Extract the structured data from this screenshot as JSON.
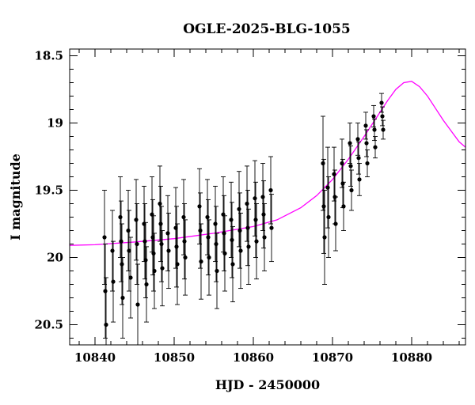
{
  "chart_data": {
    "type": "scatter",
    "title": "OGLE-2025-BLG-1055",
    "xlabel": "HJD - 2450000",
    "ylabel": "I magnitude",
    "xlim": [
      10836.8,
      10886.8
    ],
    "ylim": [
      20.65,
      18.45
    ],
    "y_inverted": true,
    "xticks": [
      10840,
      10850,
      10860,
      10870,
      10880
    ],
    "yticks": [
      18.5,
      19,
      19.5,
      20,
      20.5
    ],
    "xtick_labels": [
      "10840",
      "10850",
      "10860",
      "10870",
      "10880"
    ],
    "ytick_labels": [
      "18.5",
      "19",
      "19.5",
      "20",
      "20.5"
    ],
    "grid": false,
    "series": [
      {
        "kind": "points_with_errorbars",
        "color": "#000000",
        "x": [
          10841.2,
          10841.3,
          10841.4,
          10842.2,
          10842.3,
          10843.2,
          10843.3,
          10843.4,
          10843.5,
          10844.2,
          10844.3,
          10844.5,
          10845.2,
          10845.3,
          10845.4,
          10846.2,
          10846.3,
          10846.4,
          10846.5,
          10847.2,
          10847.3,
          10847.4,
          10847.5,
          10848.2,
          10848.3,
          10848.4,
          10848.5,
          10849.2,
          10849.3,
          10850.2,
          10850.3,
          10850.4,
          10851.2,
          10851.3,
          10851.4,
          10853.2,
          10853.3,
          10853.4,
          10854.2,
          10854.3,
          10854.4,
          10855.2,
          10855.3,
          10855.4,
          10856.2,
          10856.3,
          10856.4,
          10857.2,
          10857.3,
          10857.4,
          10858.2,
          10858.3,
          10858.4,
          10859.2,
          10859.3,
          10859.4,
          10860.2,
          10860.3,
          10860.4,
          10861.2,
          10861.3,
          10861.4,
          10862.2,
          10862.3,
          10868.8,
          10868.9,
          10869.0,
          10869.4,
          10869.5,
          10870.2,
          10870.3,
          10870.4,
          10871.2,
          10871.3,
          10871.4,
          10872.2,
          10872.3,
          10872.4,
          10873.2,
          10873.3,
          10873.4,
          10874.2,
          10874.3,
          10874.4,
          10875.2,
          10875.3,
          10875.4,
          10876.2,
          10876.3,
          10876.4
        ],
        "y": [
          19.85,
          20.25,
          20.5,
          19.95,
          20.18,
          19.7,
          19.88,
          20.05,
          20.3,
          19.8,
          19.95,
          20.15,
          19.72,
          19.9,
          20.35,
          19.75,
          19.88,
          20.02,
          20.2,
          19.68,
          19.85,
          19.97,
          20.1,
          19.6,
          19.75,
          19.9,
          20.08,
          19.82,
          19.95,
          19.78,
          19.92,
          20.05,
          19.7,
          19.88,
          20.0,
          19.62,
          19.8,
          20.03,
          19.7,
          19.85,
          20.0,
          19.75,
          19.9,
          20.1,
          19.68,
          19.82,
          19.97,
          19.72,
          19.87,
          20.05,
          19.64,
          19.8,
          19.95,
          19.6,
          19.78,
          19.92,
          19.56,
          19.72,
          19.88,
          19.55,
          19.68,
          19.85,
          19.5,
          19.78,
          19.3,
          19.62,
          19.85,
          19.48,
          19.7,
          19.38,
          19.55,
          19.75,
          19.3,
          19.45,
          19.62,
          19.15,
          19.32,
          19.5,
          19.12,
          19.26,
          19.42,
          19.02,
          19.15,
          19.3,
          18.95,
          19.05,
          19.18,
          18.85,
          18.95,
          19.05
        ],
        "yerr": [
          0.35,
          0.35,
          0.35,
          0.3,
          0.3,
          0.3,
          0.3,
          0.3,
          0.3,
          0.3,
          0.3,
          0.3,
          0.3,
          0.3,
          0.3,
          0.28,
          0.28,
          0.28,
          0.28,
          0.28,
          0.28,
          0.28,
          0.28,
          0.28,
          0.28,
          0.28,
          0.28,
          0.28,
          0.28,
          0.3,
          0.3,
          0.3,
          0.28,
          0.28,
          0.28,
          0.28,
          0.28,
          0.28,
          0.28,
          0.28,
          0.28,
          0.28,
          0.28,
          0.28,
          0.28,
          0.28,
          0.28,
          0.28,
          0.28,
          0.28,
          0.28,
          0.28,
          0.28,
          0.28,
          0.28,
          0.28,
          0.28,
          0.28,
          0.28,
          0.25,
          0.25,
          0.25,
          0.25,
          0.25,
          0.35,
          0.35,
          0.35,
          0.3,
          0.3,
          0.2,
          0.2,
          0.2,
          0.18,
          0.18,
          0.18,
          0.15,
          0.15,
          0.15,
          0.12,
          0.12,
          0.12,
          0.1,
          0.1,
          0.1,
          0.08,
          0.08,
          0.08,
          0.07,
          0.07,
          0.07
        ]
      },
      {
        "kind": "model_curve",
        "color": "#ff00ff",
        "x": [
          10836.8,
          10840,
          10845,
          10850,
          10855,
          10860,
          10863,
          10866,
          10868,
          10870,
          10872,
          10874,
          10876,
          10877,
          10878,
          10879,
          10880,
          10881,
          10882,
          10883,
          10884,
          10885,
          10886,
          10886.8
        ],
        "y": [
          19.91,
          19.905,
          19.885,
          19.86,
          19.82,
          19.77,
          19.72,
          19.63,
          19.54,
          19.42,
          19.27,
          19.1,
          18.92,
          18.83,
          18.75,
          18.7,
          18.69,
          18.73,
          18.8,
          18.89,
          18.98,
          19.06,
          19.14,
          19.18
        ]
      }
    ]
  }
}
